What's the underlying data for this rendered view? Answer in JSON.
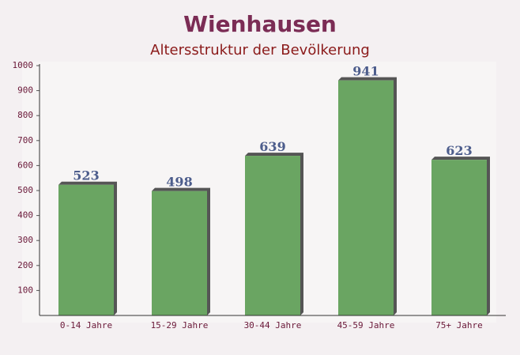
{
  "chart_data": {
    "type": "bar",
    "title": "Wienhausen",
    "subtitle": "Altersstruktur der Bevölkerung",
    "categories": [
      "0-14 Jahre",
      "15-29 Jahre",
      "30-44 Jahre",
      "45-59 Jahre",
      "75+ Jahre"
    ],
    "values": [
      523,
      498,
      639,
      941,
      623
    ],
    "color": "#6aa562",
    "ylim": [
      0,
      1000
    ],
    "yticks": [
      100,
      200,
      300,
      400,
      500,
      600,
      700,
      800,
      900,
      1000
    ]
  }
}
